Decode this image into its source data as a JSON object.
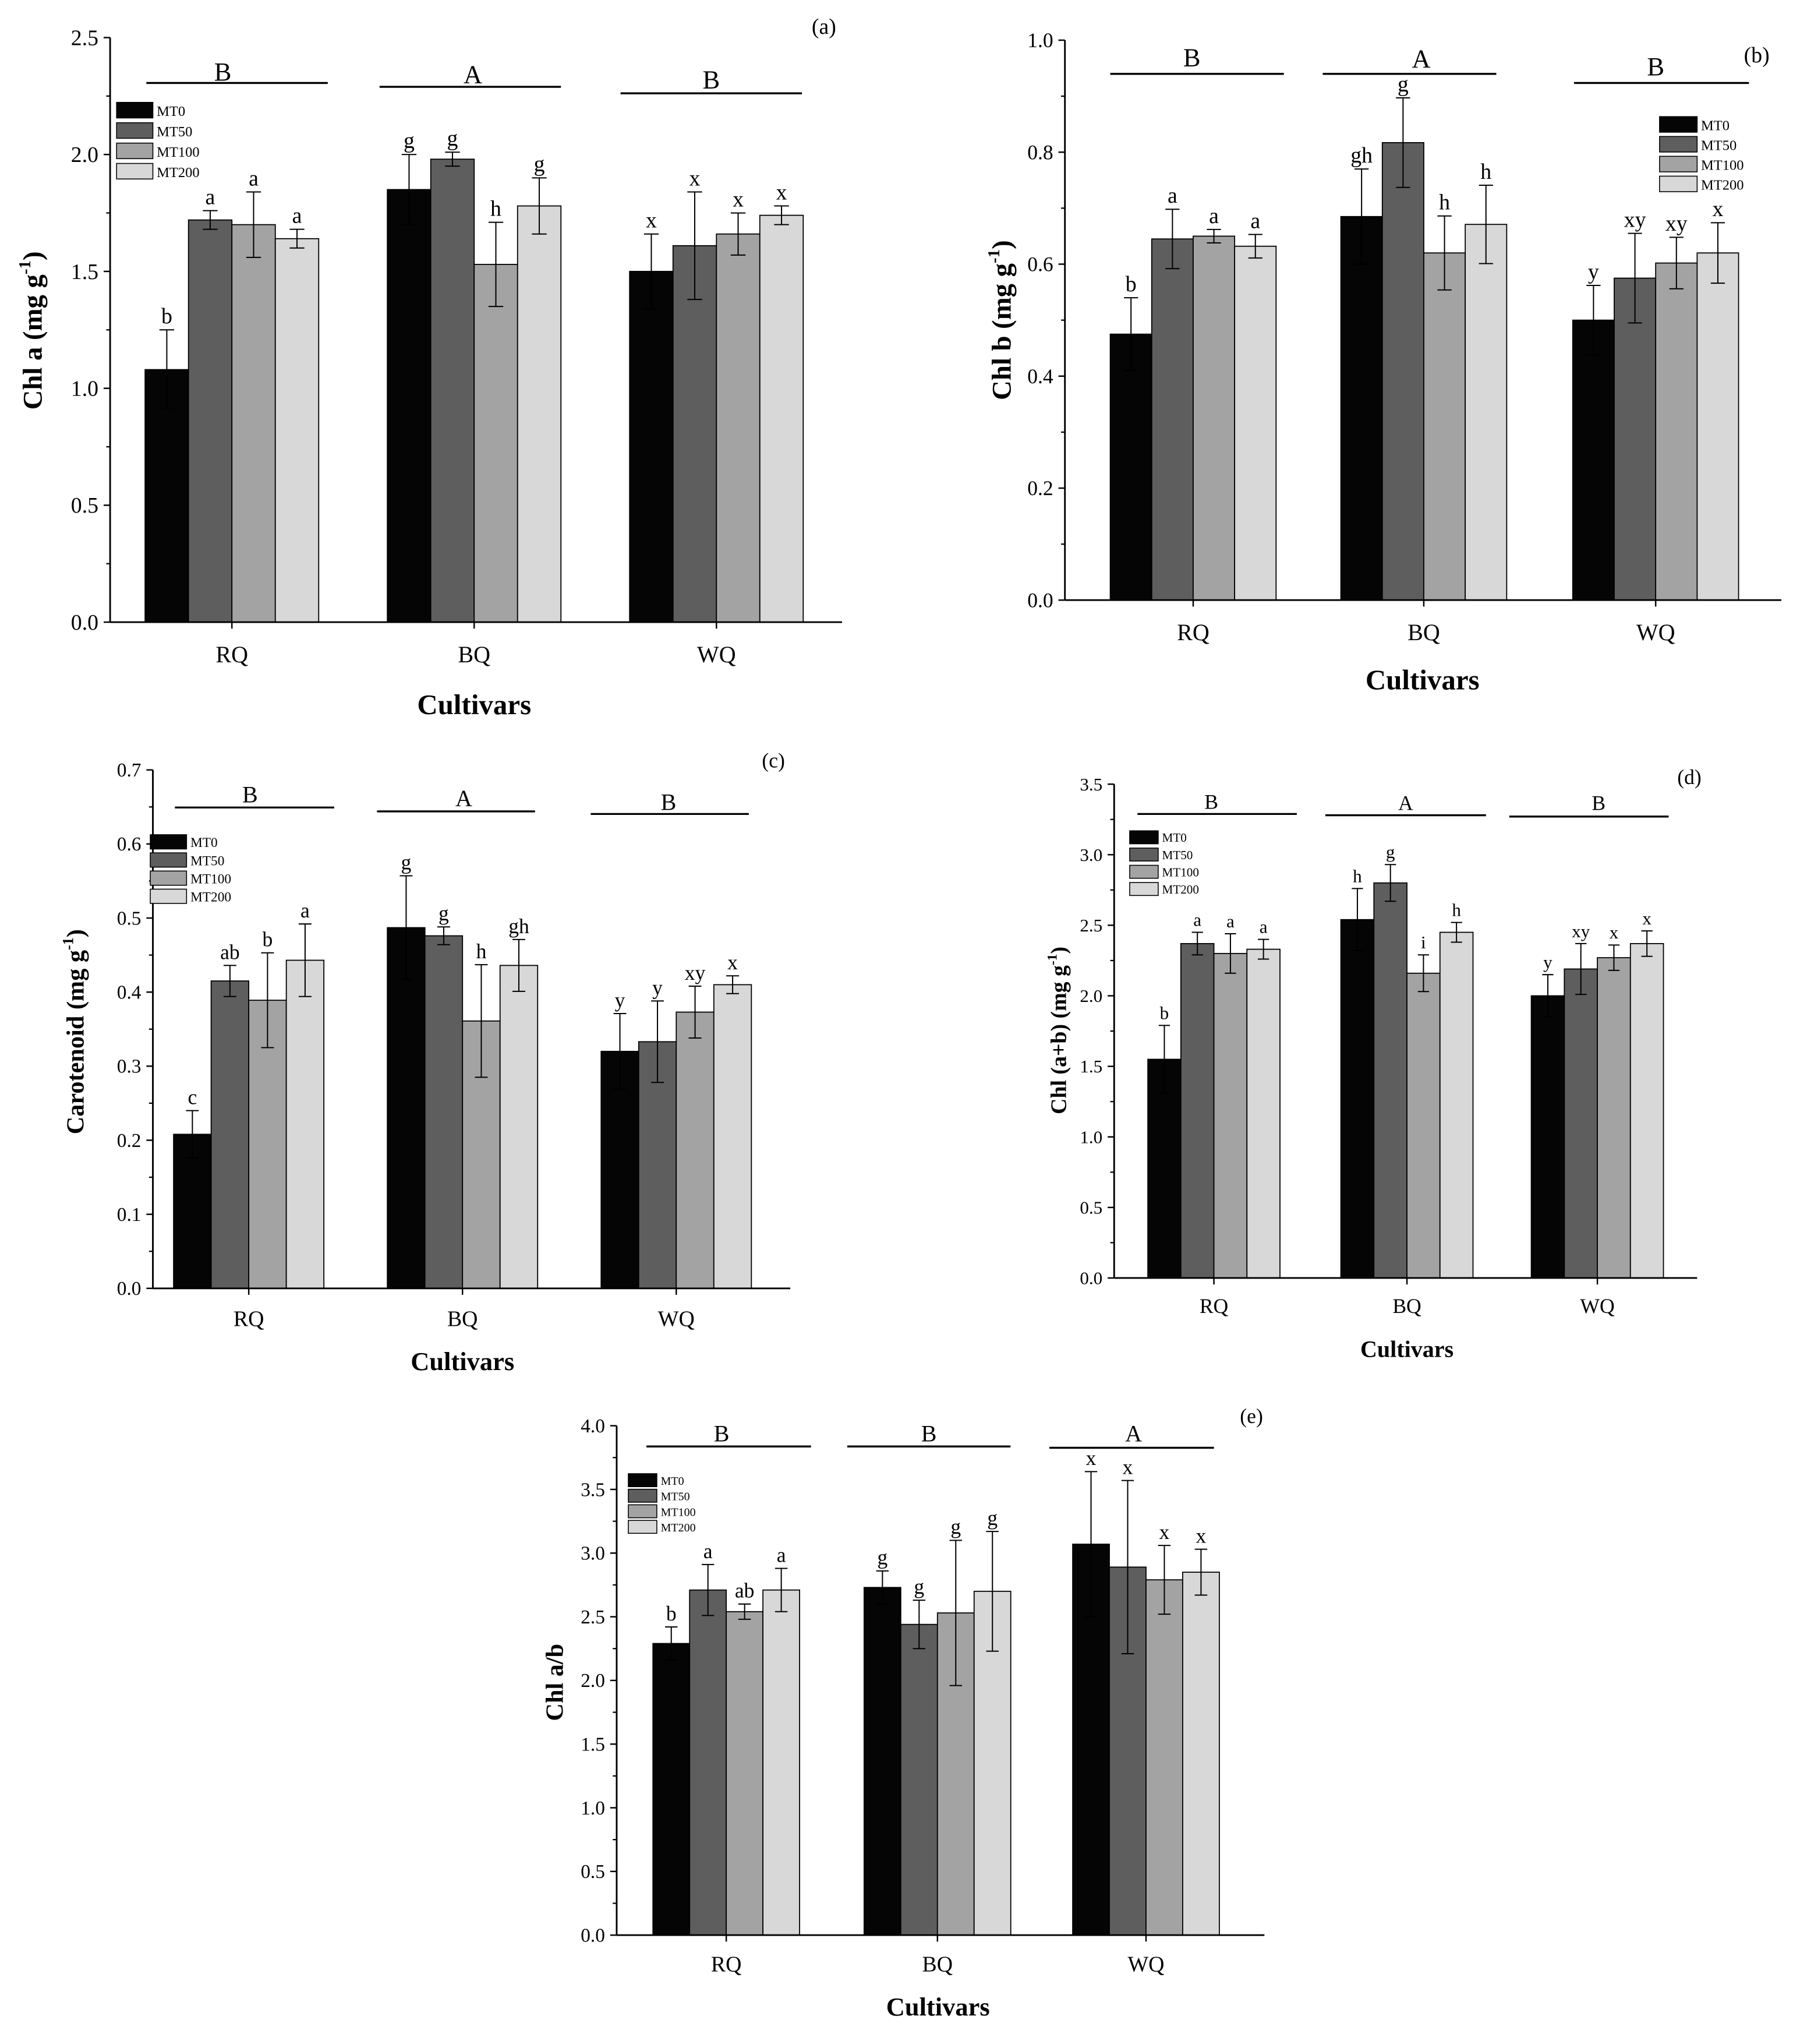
{
  "chart_data": [
    {
      "type": "bar",
      "panel_label": "(a)",
      "xlabel": "Cultivars",
      "ylabel": {
        "main": "Chl a (mg g",
        "sup": "-1",
        "tail": ")"
      },
      "categories": [
        "RQ",
        "BQ",
        "WQ"
      ],
      "ylim": [
        0,
        2.5
      ],
      "yticks": [
        "0.0",
        "0.5",
        "1.0",
        "1.5",
        "2.0",
        "2.5"
      ],
      "group_letters": [
        "B",
        "A",
        "B"
      ],
      "legend_position": "top-left",
      "series": [
        {
          "name": "MT0",
          "color": "#050505",
          "values": [
            1.08,
            1.85,
            1.5
          ],
          "errors": [
            0.17,
            0.15,
            0.16
          ],
          "letters": [
            "b",
            "g",
            "x"
          ]
        },
        {
          "name": "MT50",
          "color": "#5e5e5e",
          "values": [
            1.72,
            1.98,
            1.61
          ],
          "errors": [
            0.04,
            0.03,
            0.23
          ],
          "letters": [
            "a",
            "g",
            "x"
          ]
        },
        {
          "name": "MT100",
          "color": "#a3a3a3",
          "values": [
            1.7,
            1.53,
            1.66
          ],
          "errors": [
            0.14,
            0.18,
            0.09
          ],
          "letters": [
            "a",
            "h",
            "x"
          ]
        },
        {
          "name": "MT200",
          "color": "#d8d8d8",
          "values": [
            1.64,
            1.78,
            1.74
          ],
          "errors": [
            0.04,
            0.12,
            0.04
          ],
          "letters": [
            "a",
            "g",
            "x"
          ]
        }
      ]
    },
    {
      "type": "bar",
      "panel_label": "(b)",
      "xlabel": "Cultivars",
      "ylabel": {
        "main": "Chl b (mg g",
        "sup": "-1",
        "tail": ")"
      },
      "categories": [
        "RQ",
        "BQ",
        "WQ"
      ],
      "ylim": [
        0,
        1.0
      ],
      "yticks": [
        "0.0",
        "0.2",
        "0.4",
        "0.6",
        "0.8",
        "1.0"
      ],
      "group_letters": [
        "B",
        "A",
        "B"
      ],
      "legend_position": "top-right",
      "series": [
        {
          "name": "MT0",
          "color": "#050505",
          "values": [
            0.475,
            0.685,
            0.5
          ],
          "errors": [
            0.065,
            0.085,
            0.062
          ],
          "letters": [
            "b",
            "gh",
            "y"
          ]
        },
        {
          "name": "MT50",
          "color": "#5e5e5e",
          "values": [
            0.645,
            0.817,
            0.575
          ],
          "errors": [
            0.053,
            0.08,
            0.08
          ],
          "letters": [
            "a",
            "g",
            "xy"
          ]
        },
        {
          "name": "MT100",
          "color": "#a3a3a3",
          "values": [
            0.65,
            0.62,
            0.602
          ],
          "errors": [
            0.012,
            0.066,
            0.046
          ],
          "letters": [
            "a",
            "h",
            "xy"
          ]
        },
        {
          "name": "MT200",
          "color": "#d8d8d8",
          "values": [
            0.632,
            0.671,
            0.62
          ],
          "errors": [
            0.021,
            0.07,
            0.054
          ],
          "letters": [
            "a",
            "h",
            "x"
          ]
        }
      ]
    },
    {
      "type": "bar",
      "panel_label": "(c)",
      "xlabel": "Cultivars",
      "ylabel": {
        "main": "Carotenoid (mg g",
        "sup": "-1",
        "tail": ")"
      },
      "categories": [
        "RQ",
        "BQ",
        "WQ"
      ],
      "ylim": [
        0,
        0.7
      ],
      "yticks": [
        "0.0",
        "0.1",
        "0.2",
        "0.3",
        "0.4",
        "0.5",
        "0.6",
        "0.7"
      ],
      "group_letters": [
        "B",
        "A",
        "B"
      ],
      "legend_position": "top-left",
      "series": [
        {
          "name": "MT0",
          "color": "#050505",
          "values": [
            0.208,
            0.487,
            0.32
          ],
          "errors": [
            0.032,
            0.07,
            0.051
          ],
          "letters": [
            "c",
            "g",
            "y"
          ]
        },
        {
          "name": "MT50",
          "color": "#5e5e5e",
          "values": [
            0.415,
            0.476,
            0.333
          ],
          "errors": [
            0.021,
            0.012,
            0.055
          ],
          "letters": [
            "ab",
            "g",
            "y"
          ]
        },
        {
          "name": "MT100",
          "color": "#a3a3a3",
          "values": [
            0.389,
            0.361,
            0.373
          ],
          "errors": [
            0.064,
            0.076,
            0.035
          ],
          "letters": [
            "b",
            "h",
            "xy"
          ]
        },
        {
          "name": "MT200",
          "color": "#d8d8d8",
          "values": [
            0.443,
            0.436,
            0.41
          ],
          "errors": [
            0.049,
            0.035,
            0.012
          ],
          "letters": [
            "a",
            "gh",
            "x"
          ]
        }
      ]
    },
    {
      "type": "bar",
      "panel_label": "(d)",
      "xlabel": "Cultivars",
      "ylabel": {
        "main": "Chl (a+b) (mg g",
        "sup": "-1",
        "tail": ")"
      },
      "categories": [
        "RQ",
        "BQ",
        "WQ"
      ],
      "ylim": [
        0,
        3.5
      ],
      "yticks": [
        "0.0",
        "0.5",
        "1.0",
        "1.5",
        "2.0",
        "2.5",
        "3.0",
        "3.5"
      ],
      "group_letters": [
        "B",
        "A",
        "B"
      ],
      "legend_position": "top-left",
      "series": [
        {
          "name": "MT0",
          "color": "#050505",
          "values": [
            1.55,
            2.54,
            2.0
          ],
          "errors": [
            0.24,
            0.22,
            0.15
          ],
          "letters": [
            "b",
            "h",
            "y"
          ]
        },
        {
          "name": "MT50",
          "color": "#5e5e5e",
          "values": [
            2.37,
            2.8,
            2.19
          ],
          "errors": [
            0.08,
            0.13,
            0.18
          ],
          "letters": [
            "a",
            "g",
            "xy"
          ]
        },
        {
          "name": "MT100",
          "color": "#a3a3a3",
          "values": [
            2.3,
            2.16,
            2.27
          ],
          "errors": [
            0.14,
            0.13,
            0.09
          ],
          "letters": [
            "a",
            "i",
            "x"
          ]
        },
        {
          "name": "MT200",
          "color": "#d8d8d8",
          "values": [
            2.33,
            2.45,
            2.37
          ],
          "errors": [
            0.07,
            0.07,
            0.09
          ],
          "letters": [
            "a",
            "h",
            "x"
          ]
        }
      ]
    },
    {
      "type": "bar",
      "panel_label": "(e)",
      "xlabel": "Cultivars",
      "ylabel": {
        "main": "Chl a/b"
      },
      "categories": [
        "RQ",
        "BQ",
        "WQ"
      ],
      "ylim": [
        0,
        4.0
      ],
      "yticks": [
        "0.0",
        "0.5",
        "1.0",
        "1.5",
        "2.0",
        "2.5",
        "3.0",
        "3.5",
        "4.0"
      ],
      "group_letters": [
        "B",
        "B",
        "A"
      ],
      "legend_position": "top-left",
      "series": [
        {
          "name": "MT0",
          "color": "#050505",
          "values": [
            2.29,
            2.73,
            3.07
          ],
          "errors": [
            0.13,
            0.13,
            0.57
          ],
          "letters": [
            "b",
            "g",
            "x"
          ]
        },
        {
          "name": "MT50",
          "color": "#5e5e5e",
          "values": [
            2.71,
            2.44,
            2.89
          ],
          "errors": [
            0.2,
            0.19,
            0.68
          ],
          "letters": [
            "a",
            "g",
            "x"
          ]
        },
        {
          "name": "MT100",
          "color": "#a3a3a3",
          "values": [
            2.54,
            2.53,
            2.79
          ],
          "errors": [
            0.06,
            0.57,
            0.27
          ],
          "letters": [
            "ab",
            "g",
            "x"
          ]
        },
        {
          "name": "MT200",
          "color": "#d8d8d8",
          "values": [
            2.71,
            2.7,
            2.85
          ],
          "errors": [
            0.17,
            0.47,
            0.18
          ],
          "letters": [
            "a",
            "g",
            "x"
          ]
        }
      ]
    }
  ]
}
